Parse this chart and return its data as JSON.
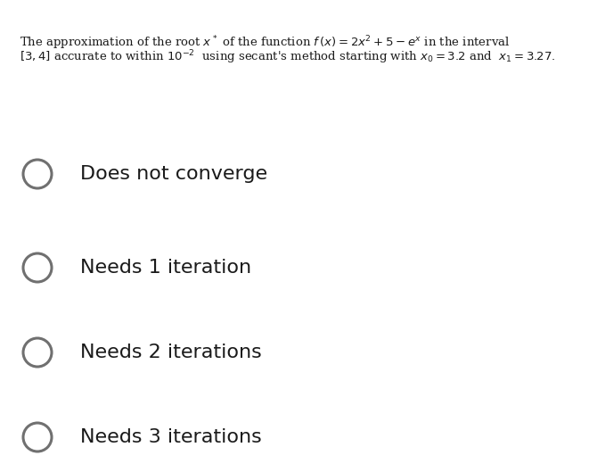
{
  "background_color": "#ffffff",
  "text_color": "#1a1a1a",
  "question_color": "#1a1a1a",
  "circle_color": "#707070",
  "question_fontsize": 9.5,
  "option_fontsize": 16,
  "options": [
    "Does not converge",
    "Needs 1 iteration",
    "Needs 2 iterations",
    "Needs 3 iterations"
  ],
  "fig_width": 6.61,
  "fig_height": 5.29,
  "dpi": 100
}
